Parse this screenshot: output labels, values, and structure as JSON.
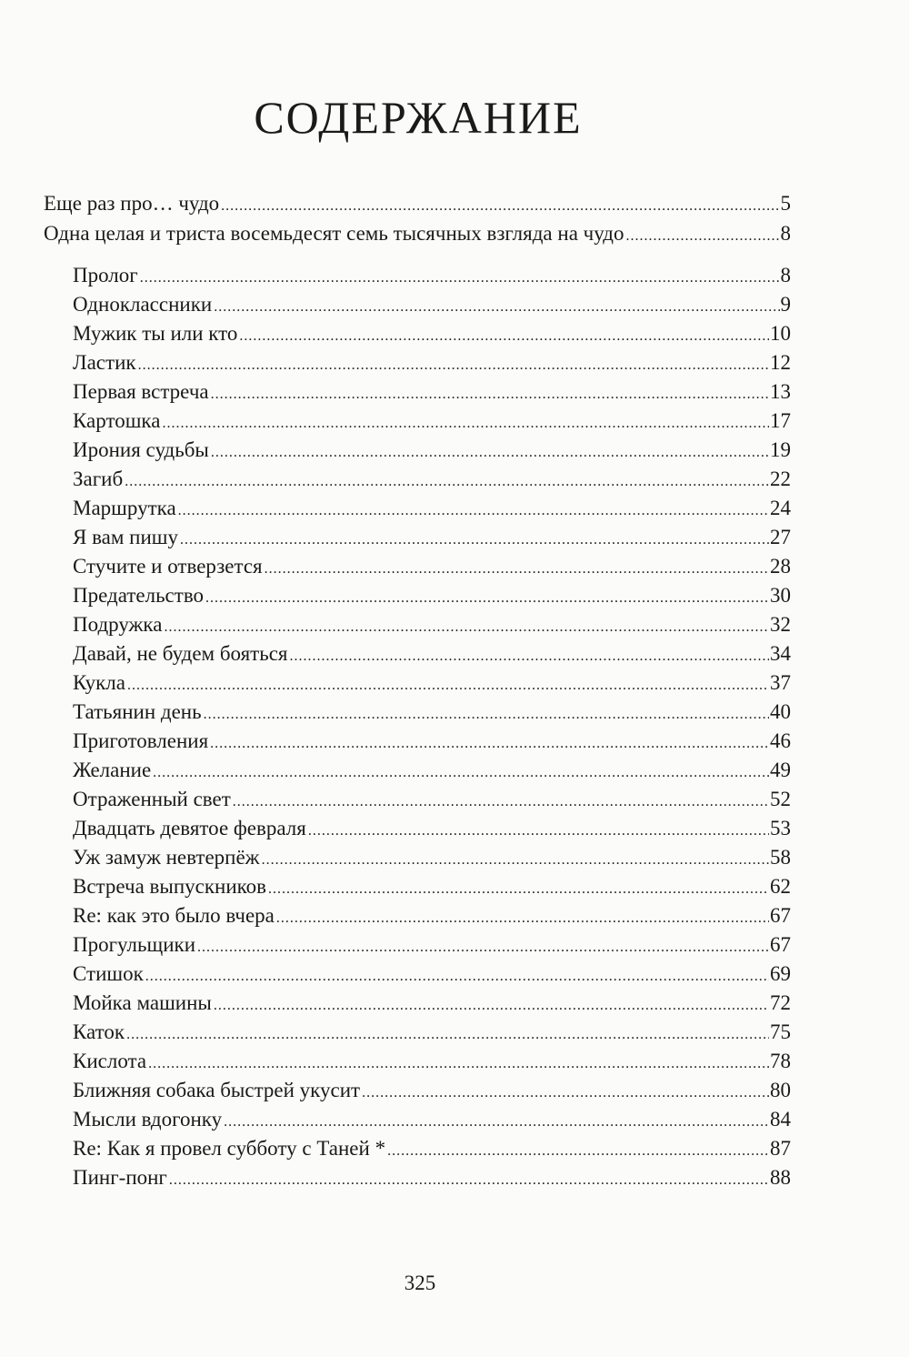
{
  "title": "СОДЕРЖАНИЕ",
  "entries": [
    {
      "label": "Еще раз про… чудо",
      "page": "5",
      "level": 1
    },
    {
      "label": "Одна целая и триста восемьдесят семь тысячных взгляда на чудо",
      "page": "8",
      "level": 1
    },
    {
      "label": "Пролог",
      "page": "8",
      "level": 2
    },
    {
      "label": "Одноклассники",
      "page": "9",
      "level": 2
    },
    {
      "label": "Мужик ты или кто",
      "page": "10",
      "level": 2
    },
    {
      "label": "Ластик",
      "page": "12",
      "level": 2
    },
    {
      "label": "Первая встреча",
      "page": "13",
      "level": 2
    },
    {
      "label": "Картошка",
      "page": "17",
      "level": 2
    },
    {
      "label": "Ирония судьбы",
      "page": "19",
      "level": 2
    },
    {
      "label": "Загиб",
      "page": "22",
      "level": 2
    },
    {
      "label": "Маршрутка",
      "page": "24",
      "level": 2
    },
    {
      "label": "Я вам пишу",
      "page": "27",
      "level": 2
    },
    {
      "label": "Стучите и отверзется",
      "page": "28",
      "level": 2
    },
    {
      "label": "Предательство",
      "page": "30",
      "level": 2
    },
    {
      "label": "Подружка",
      "page": "32",
      "level": 2
    },
    {
      "label": "Давай, не будем бояться",
      "page": "34",
      "level": 2
    },
    {
      "label": "Кукла",
      "page": "37",
      "level": 2
    },
    {
      "label": "Татьянин день",
      "page": "40",
      "level": 2
    },
    {
      "label": "Приготовления",
      "page": "46",
      "level": 2
    },
    {
      "label": "Желание",
      "page": "49",
      "level": 2
    },
    {
      "label": "Отраженный свет",
      "page": "52",
      "level": 2
    },
    {
      "label": "Двадцать девятое февраля",
      "page": "53",
      "level": 2
    },
    {
      "label": "Уж замуж невтерпёж",
      "page": "58",
      "level": 2
    },
    {
      "label": "Встреча выпускников",
      "page": "62",
      "level": 2
    },
    {
      "label": "Re: как это было вчера",
      "page": "67",
      "level": 2
    },
    {
      "label": "Прогульщики",
      "page": "67",
      "level": 2
    },
    {
      "label": "Стишок",
      "page": "69",
      "level": 2
    },
    {
      "label": "Мойка машины",
      "page": "72",
      "level": 2
    },
    {
      "label": "Каток",
      "page": "75",
      "level": 2
    },
    {
      "label": "Кислота",
      "page": "78",
      "level": 2
    },
    {
      "label": "Ближняя собака быстрей укусит",
      "page": "80",
      "level": 2
    },
    {
      "label": "Мысли вдогонку",
      "page": "84",
      "level": 2
    },
    {
      "label": "Re: Как я провел субботу с Таней *",
      "page": "87",
      "level": 2
    },
    {
      "label": "Пинг-понг",
      "page": "88",
      "level": 2
    }
  ],
  "folio": "325"
}
